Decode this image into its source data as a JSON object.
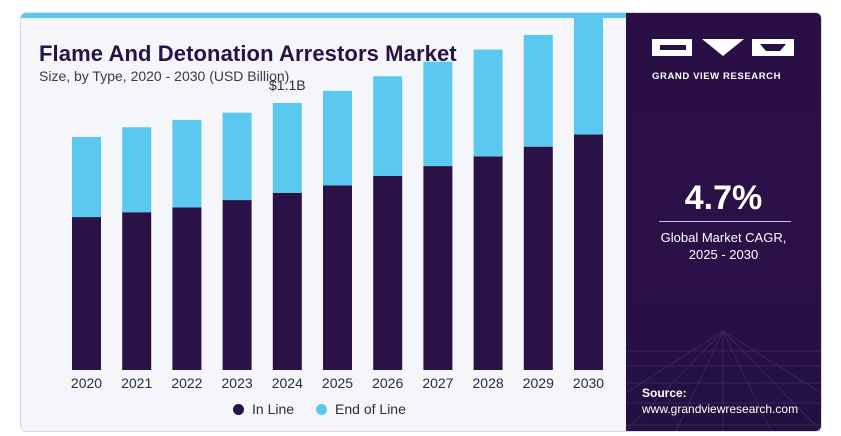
{
  "header": {
    "title": "Flame And Detonation Arrestors Market",
    "subtitle": "Size, by Type, 2020 - 2030 (USD Billion)"
  },
  "chart_data": {
    "type": "bar",
    "stacked": true,
    "categories": [
      "2020",
      "2021",
      "2022",
      "2023",
      "2024",
      "2025",
      "2026",
      "2027",
      "2028",
      "2029",
      "2030"
    ],
    "series": [
      {
        "name": "In Line",
        "color": "#2a1146",
        "values": [
          0.63,
          0.65,
          0.67,
          0.7,
          0.73,
          0.76,
          0.8,
          0.84,
          0.88,
          0.92,
          0.97
        ]
      },
      {
        "name": "End of Line",
        "color": "#5bc8f0",
        "values": [
          0.33,
          0.35,
          0.36,
          0.36,
          0.37,
          0.39,
          0.41,
          0.43,
          0.44,
          0.46,
          0.48
        ]
      }
    ],
    "annotation": {
      "category": "2024",
      "text": "$1.1B"
    },
    "ylim": [
      0,
      1.45
    ],
    "grid": false,
    "legend": "bottom-center"
  },
  "side": {
    "brand": "GRAND VIEW RESEARCH",
    "cagr_value": "4.7%",
    "cagr_label_line1": "Global Market CAGR,",
    "cagr_label_line2": "2025 - 2030",
    "source_label": "Source:",
    "source_url": "www.grandviewresearch.com",
    "logo_icon": "gvr-logo-icon"
  }
}
